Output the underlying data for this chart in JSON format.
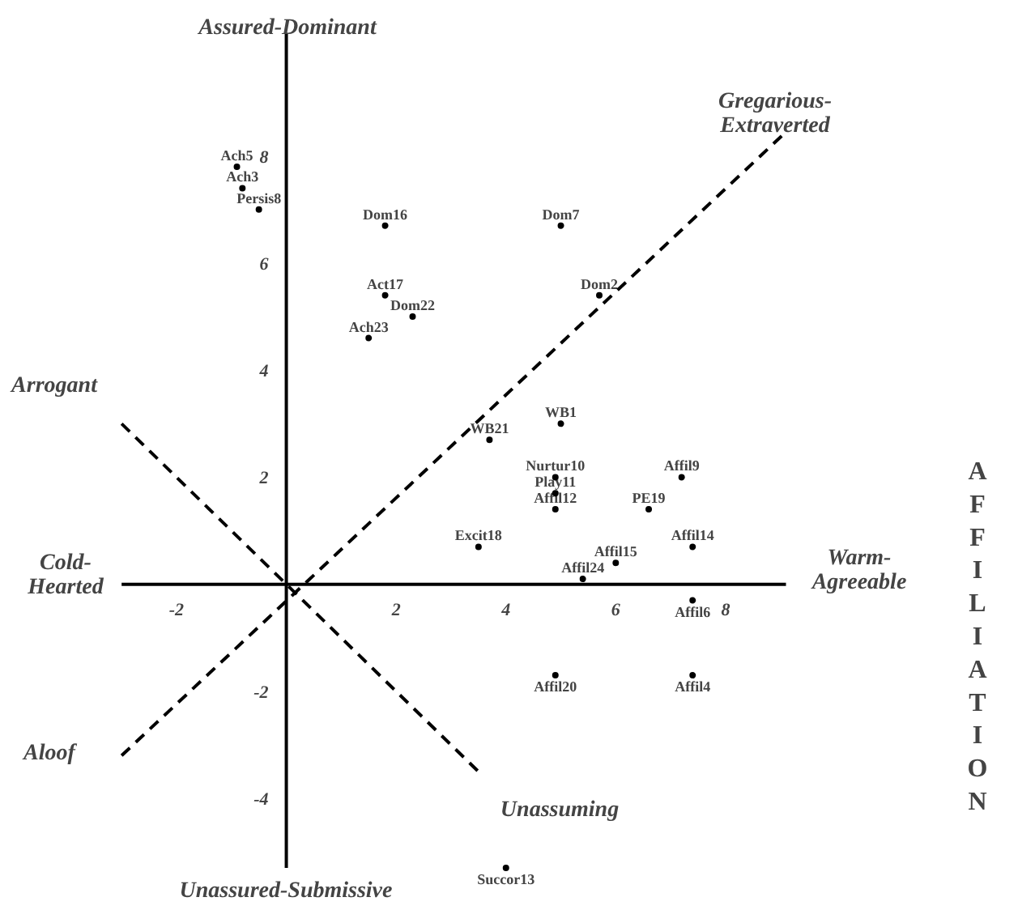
{
  "chart_data": {
    "type": "scatter",
    "grid": false,
    "xlim": [
      -3,
      9.1
    ],
    "ylim": [
      -5.3,
      10.3
    ],
    "xticks": [
      -2,
      2,
      4,
      6,
      8
    ],
    "yticks": [
      -4,
      -2,
      2,
      4,
      6,
      8
    ],
    "series": [
      {
        "color": "#000000",
        "marker": "circle",
        "x": [
          -0.9,
          -0.8,
          -0.5,
          1.8,
          5.0,
          1.8,
          2.3,
          1.5,
          5.7,
          5.0,
          3.7,
          4.9,
          4.9,
          4.9,
          7.2,
          6.6,
          3.5,
          7.4,
          6.0,
          5.4,
          7.4,
          4.9,
          7.4,
          4.0
        ],
        "values": [
          7.8,
          7.4,
          7.0,
          6.7,
          6.7,
          5.4,
          5.0,
          4.6,
          5.4,
          3.0,
          2.7,
          2.0,
          1.7,
          1.4,
          2.0,
          1.4,
          0.7,
          0.7,
          0.4,
          0.1,
          -0.3,
          -1.7,
          -1.7,
          -5.3
        ]
      },
      {
        "type": "line",
        "line_style": "dashed",
        "color": "#000000",
        "x": [
          -3.0,
          9.1
        ],
        "values": [
          -3.2,
          8.45
        ]
      },
      {
        "type": "line",
        "line_style": "dashed",
        "color": "#000000",
        "x": [
          -3.0,
          3.5
        ],
        "values": [
          3.0,
          -3.5
        ]
      }
    ],
    "annotations": [
      {
        "text": "Ach5",
        "x": -0.9,
        "y": 7.8
      },
      {
        "text": "Ach3",
        "x": -0.8,
        "y": 7.4
      },
      {
        "text": "Persis8",
        "x": -0.5,
        "y": 7.0
      },
      {
        "text": "Dom16",
        "x": 1.8,
        "y": 6.7
      },
      {
        "text": "Dom7",
        "x": 5.0,
        "y": 6.7
      },
      {
        "text": "Act17",
        "x": 1.8,
        "y": 5.4
      },
      {
        "text": "Dom22",
        "x": 2.3,
        "y": 5.0
      },
      {
        "text": "Ach23",
        "x": 1.5,
        "y": 4.6
      },
      {
        "text": "Dom2",
        "x": 5.7,
        "y": 5.4
      },
      {
        "text": "WB1",
        "x": 5.0,
        "y": 3.0
      },
      {
        "text": "WB21",
        "x": 3.7,
        "y": 2.7
      },
      {
        "text": "Nurtur10",
        "x": 4.9,
        "y": 2.0
      },
      {
        "text": "Play11",
        "x": 4.9,
        "y": 1.7
      },
      {
        "text": "Affil12",
        "x": 4.9,
        "y": 1.4
      },
      {
        "text": "Affil9",
        "x": 7.2,
        "y": 2.0
      },
      {
        "text": "PE19",
        "x": 6.6,
        "y": 1.4
      },
      {
        "text": "Excit18",
        "x": 3.5,
        "y": 0.7
      },
      {
        "text": "Affil14",
        "x": 7.4,
        "y": 0.7
      },
      {
        "text": "Affil15",
        "x": 6.0,
        "y": 0.4
      },
      {
        "text": "Affil24",
        "x": 5.4,
        "y": 0.1
      },
      {
        "text": "Affil6",
        "x": 7.4,
        "y": -0.3
      },
      {
        "text": "Affil20",
        "x": 4.9,
        "y": -1.7
      },
      {
        "text": "Affil4",
        "x": 7.4,
        "y": -1.7
      },
      {
        "text": "Succor13",
        "x": 4.0,
        "y": -5.3
      },
      "Assured-Dominant",
      "Gregarious-\nExtraverted",
      "Arrogant",
      "Cold-\nHearted",
      "Warm-\nAgreeable",
      "Aloof",
      "Unassuming",
      "Unassured-Submissive",
      "AFFILIATION"
    ]
  }
}
